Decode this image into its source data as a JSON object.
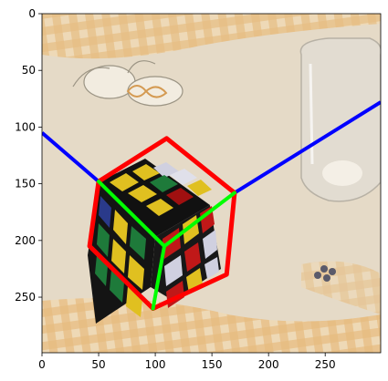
{
  "axes": {
    "x_range": [
      0,
      299
    ],
    "y_range": [
      0,
      299
    ],
    "y_inverted": true,
    "x_ticks": [
      0,
      50,
      100,
      150,
      200,
      250
    ],
    "y_ticks": [
      0,
      50,
      100,
      150,
      200,
      250
    ]
  },
  "colors": {
    "cube_outline": "#ff0000",
    "cube_edges": "#00ff00",
    "horizon_lines": "#0000ff"
  },
  "annotations": {
    "horizon_left": [
      [
        0,
        105
      ],
      [
        50,
        148
      ]
    ],
    "horizon_right": [
      [
        170,
        158
      ],
      [
        299,
        78
      ]
    ],
    "cube_outline": [
      [
        50,
        148
      ],
      [
        110,
        110
      ],
      [
        170,
        158
      ],
      [
        163,
        230
      ],
      [
        98,
        260
      ],
      [
        42,
        205
      ],
      [
        50,
        148
      ]
    ],
    "cube_edges": [
      [
        [
          50,
          148
        ],
        [
          108,
          205
        ]
      ],
      [
        [
          108,
          205
        ],
        [
          170,
          158
        ]
      ],
      [
        [
          108,
          205
        ],
        [
          98,
          260
        ]
      ]
    ]
  }
}
